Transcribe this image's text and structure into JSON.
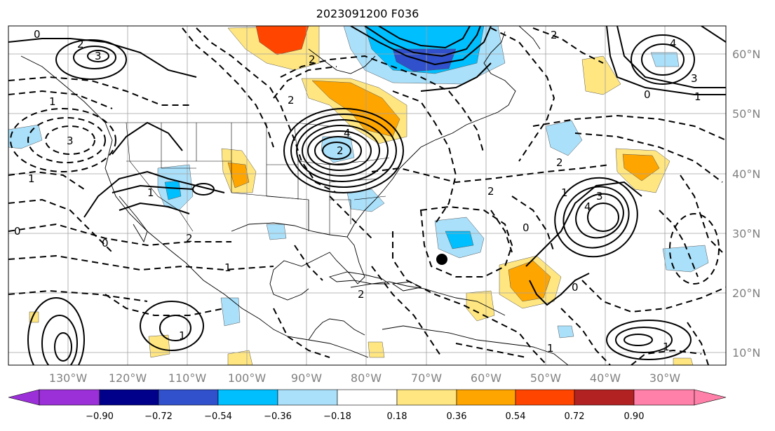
{
  "title": "2023091200 F036",
  "lon_labels": [
    "130°W",
    "120°W",
    "110°W",
    "100°W",
    "90°W",
    "80°W",
    "70°W",
    "60°W",
    "50°W",
    "40°W",
    "30°W"
  ],
  "lat_labels": [
    "60°N",
    "50°N",
    "40°N",
    "30°N",
    "20°N",
    "10°N"
  ],
  "colorbar": {
    "ticks": [
      "−0.90",
      "−0.72",
      "−0.54",
      "−0.36",
      "−0.18",
      "0.18",
      "0.36",
      "0.54",
      "0.72",
      "0.90"
    ],
    "colors": [
      "#9b30d9",
      "#00008b",
      "#3050cc",
      "#00bfff",
      "#aae0fa",
      "#ffffff",
      "#ffe680",
      "#ffa500",
      "#ff4500",
      "#b22222",
      "#ff80a8"
    ]
  },
  "contour_labels": [
    "0",
    "2",
    "3",
    "1",
    "0",
    "1",
    "2",
    "3",
    "2",
    "4",
    "2",
    "0",
    "2",
    "1",
    "2",
    "3",
    "4",
    "0",
    "1",
    "1",
    "2",
    "0",
    "0",
    "1",
    "1",
    "4",
    "1",
    "3",
    "2",
    "2",
    "1"
  ],
  "colors": {
    "shade_orange": "#ffa500",
    "shade_yellow": "#ffe680",
    "shade_red": "#ff4500",
    "shade_lightblue": "#aae0fa",
    "shade_blue": "#00bfff",
    "shade_purple": "#3050cc",
    "marker": "#000000"
  }
}
